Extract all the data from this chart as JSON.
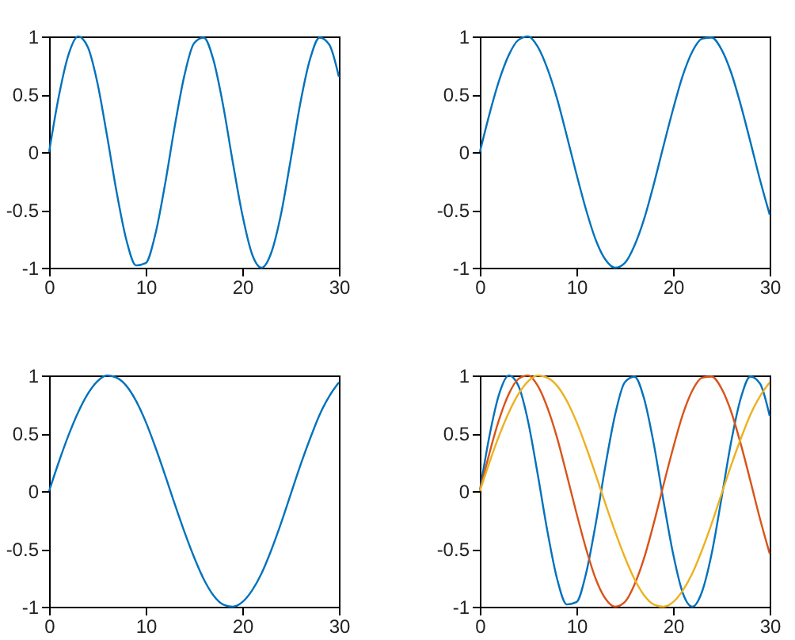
{
  "chart_data": [
    {
      "type": "line",
      "x": [
        0,
        1,
        2,
        3,
        4,
        5,
        6,
        7,
        8,
        9,
        10,
        11,
        12,
        13,
        14,
        15,
        16,
        17,
        18,
        19,
        20,
        21,
        22,
        23,
        24,
        25,
        26,
        27,
        28,
        29,
        30
      ],
      "xlim": [
        0,
        30
      ],
      "xticks": [
        0,
        10,
        20,
        30
      ],
      "ylim": [
        -1,
        1
      ],
      "yticks": [
        -1,
        -0.5,
        0,
        0.5,
        1
      ],
      "series": [
        {
          "color": "#0072bd",
          "values": [
            0,
            0.48,
            0.84,
            1.0,
            0.91,
            0.6,
            0.14,
            -0.35,
            -0.76,
            -0.98,
            -0.96,
            -0.71,
            -0.28,
            0.22,
            0.66,
            0.94,
            0.99,
            0.8,
            0.41,
            -0.08,
            -0.54,
            -0.88,
            -1.0,
            -0.87,
            -0.54,
            -0.07,
            0.42,
            0.8,
            0.99,
            0.93,
            0.65
          ]
        }
      ]
    },
    {
      "type": "line",
      "x": [
        0,
        1,
        2,
        3,
        4,
        5,
        6,
        7,
        8,
        9,
        10,
        11,
        12,
        13,
        14,
        15,
        16,
        17,
        18,
        19,
        20,
        21,
        22,
        23,
        24,
        25,
        26,
        27,
        28,
        29,
        30
      ],
      "xlim": [
        0,
        30
      ],
      "xticks": [
        0,
        10,
        20,
        30
      ],
      "ylim": [
        -1,
        1
      ],
      "yticks": [
        -1,
        -0.5,
        0,
        0.5,
        1
      ],
      "series": [
        {
          "color": "#0072bd",
          "values": [
            0,
            0.33,
            0.62,
            0.84,
            0.97,
            1.0,
            0.91,
            0.72,
            0.46,
            0.14,
            -0.19,
            -0.5,
            -0.76,
            -0.93,
            -1.0,
            -0.96,
            -0.81,
            -0.58,
            -0.28,
            0.05,
            0.37,
            0.66,
            0.87,
            0.98,
            0.99,
            0.89,
            0.69,
            0.41,
            0.09,
            -0.24,
            -0.54
          ]
        }
      ]
    },
    {
      "type": "line",
      "x": [
        0,
        1,
        2,
        3,
        4,
        5,
        6,
        7,
        8,
        9,
        10,
        11,
        12,
        13,
        14,
        15,
        16,
        17,
        18,
        19,
        20,
        21,
        22,
        23,
        24,
        25,
        26,
        27,
        28,
        29,
        30
      ],
      "xlim": [
        0,
        30
      ],
      "xticks": [
        0,
        10,
        20,
        30
      ],
      "ylim": [
        -1,
        1
      ],
      "yticks": [
        -1,
        -0.5,
        0,
        0.5,
        1
      ],
      "series": [
        {
          "color": "#0072bd",
          "values": [
            0,
            0.25,
            0.48,
            0.68,
            0.84,
            0.95,
            1.0,
            0.98,
            0.91,
            0.78,
            0.6,
            0.38,
            0.14,
            -0.11,
            -0.35,
            -0.57,
            -0.76,
            -0.9,
            -0.98,
            -1.0,
            -0.96,
            -0.86,
            -0.71,
            -0.51,
            -0.28,
            -0.03,
            0.22,
            0.45,
            0.66,
            0.82,
            0.94
          ]
        }
      ]
    },
    {
      "type": "line",
      "x": [
        0,
        1,
        2,
        3,
        4,
        5,
        6,
        7,
        8,
        9,
        10,
        11,
        12,
        13,
        14,
        15,
        16,
        17,
        18,
        19,
        20,
        21,
        22,
        23,
        24,
        25,
        26,
        27,
        28,
        29,
        30
      ],
      "xlim": [
        0,
        30
      ],
      "xticks": [
        0,
        10,
        20,
        30
      ],
      "ylim": [
        -1,
        1
      ],
      "yticks": [
        -1,
        -0.5,
        0,
        0.5,
        1
      ],
      "series": [
        {
          "color": "#0072bd",
          "values": [
            0,
            0.48,
            0.84,
            1.0,
            0.91,
            0.6,
            0.14,
            -0.35,
            -0.76,
            -0.98,
            -0.96,
            -0.71,
            -0.28,
            0.22,
            0.66,
            0.94,
            0.99,
            0.8,
            0.41,
            -0.08,
            -0.54,
            -0.88,
            -1.0,
            -0.87,
            -0.54,
            -0.07,
            0.42,
            0.8,
            0.99,
            0.93,
            0.65
          ]
        },
        {
          "color": "#d95319",
          "values": [
            0,
            0.33,
            0.62,
            0.84,
            0.97,
            1.0,
            0.91,
            0.72,
            0.46,
            0.14,
            -0.19,
            -0.5,
            -0.76,
            -0.93,
            -1.0,
            -0.96,
            -0.81,
            -0.58,
            -0.28,
            0.05,
            0.37,
            0.66,
            0.87,
            0.98,
            0.99,
            0.89,
            0.69,
            0.41,
            0.09,
            -0.24,
            -0.54
          ]
        },
        {
          "color": "#edb120",
          "values": [
            0,
            0.25,
            0.48,
            0.68,
            0.84,
            0.95,
            1.0,
            0.98,
            0.91,
            0.78,
            0.6,
            0.38,
            0.14,
            -0.11,
            -0.35,
            -0.57,
            -0.76,
            -0.9,
            -0.98,
            -1.0,
            -0.96,
            -0.86,
            -0.71,
            -0.51,
            -0.28,
            -0.03,
            0.22,
            0.45,
            0.66,
            0.82,
            0.94
          ]
        }
      ]
    }
  ]
}
